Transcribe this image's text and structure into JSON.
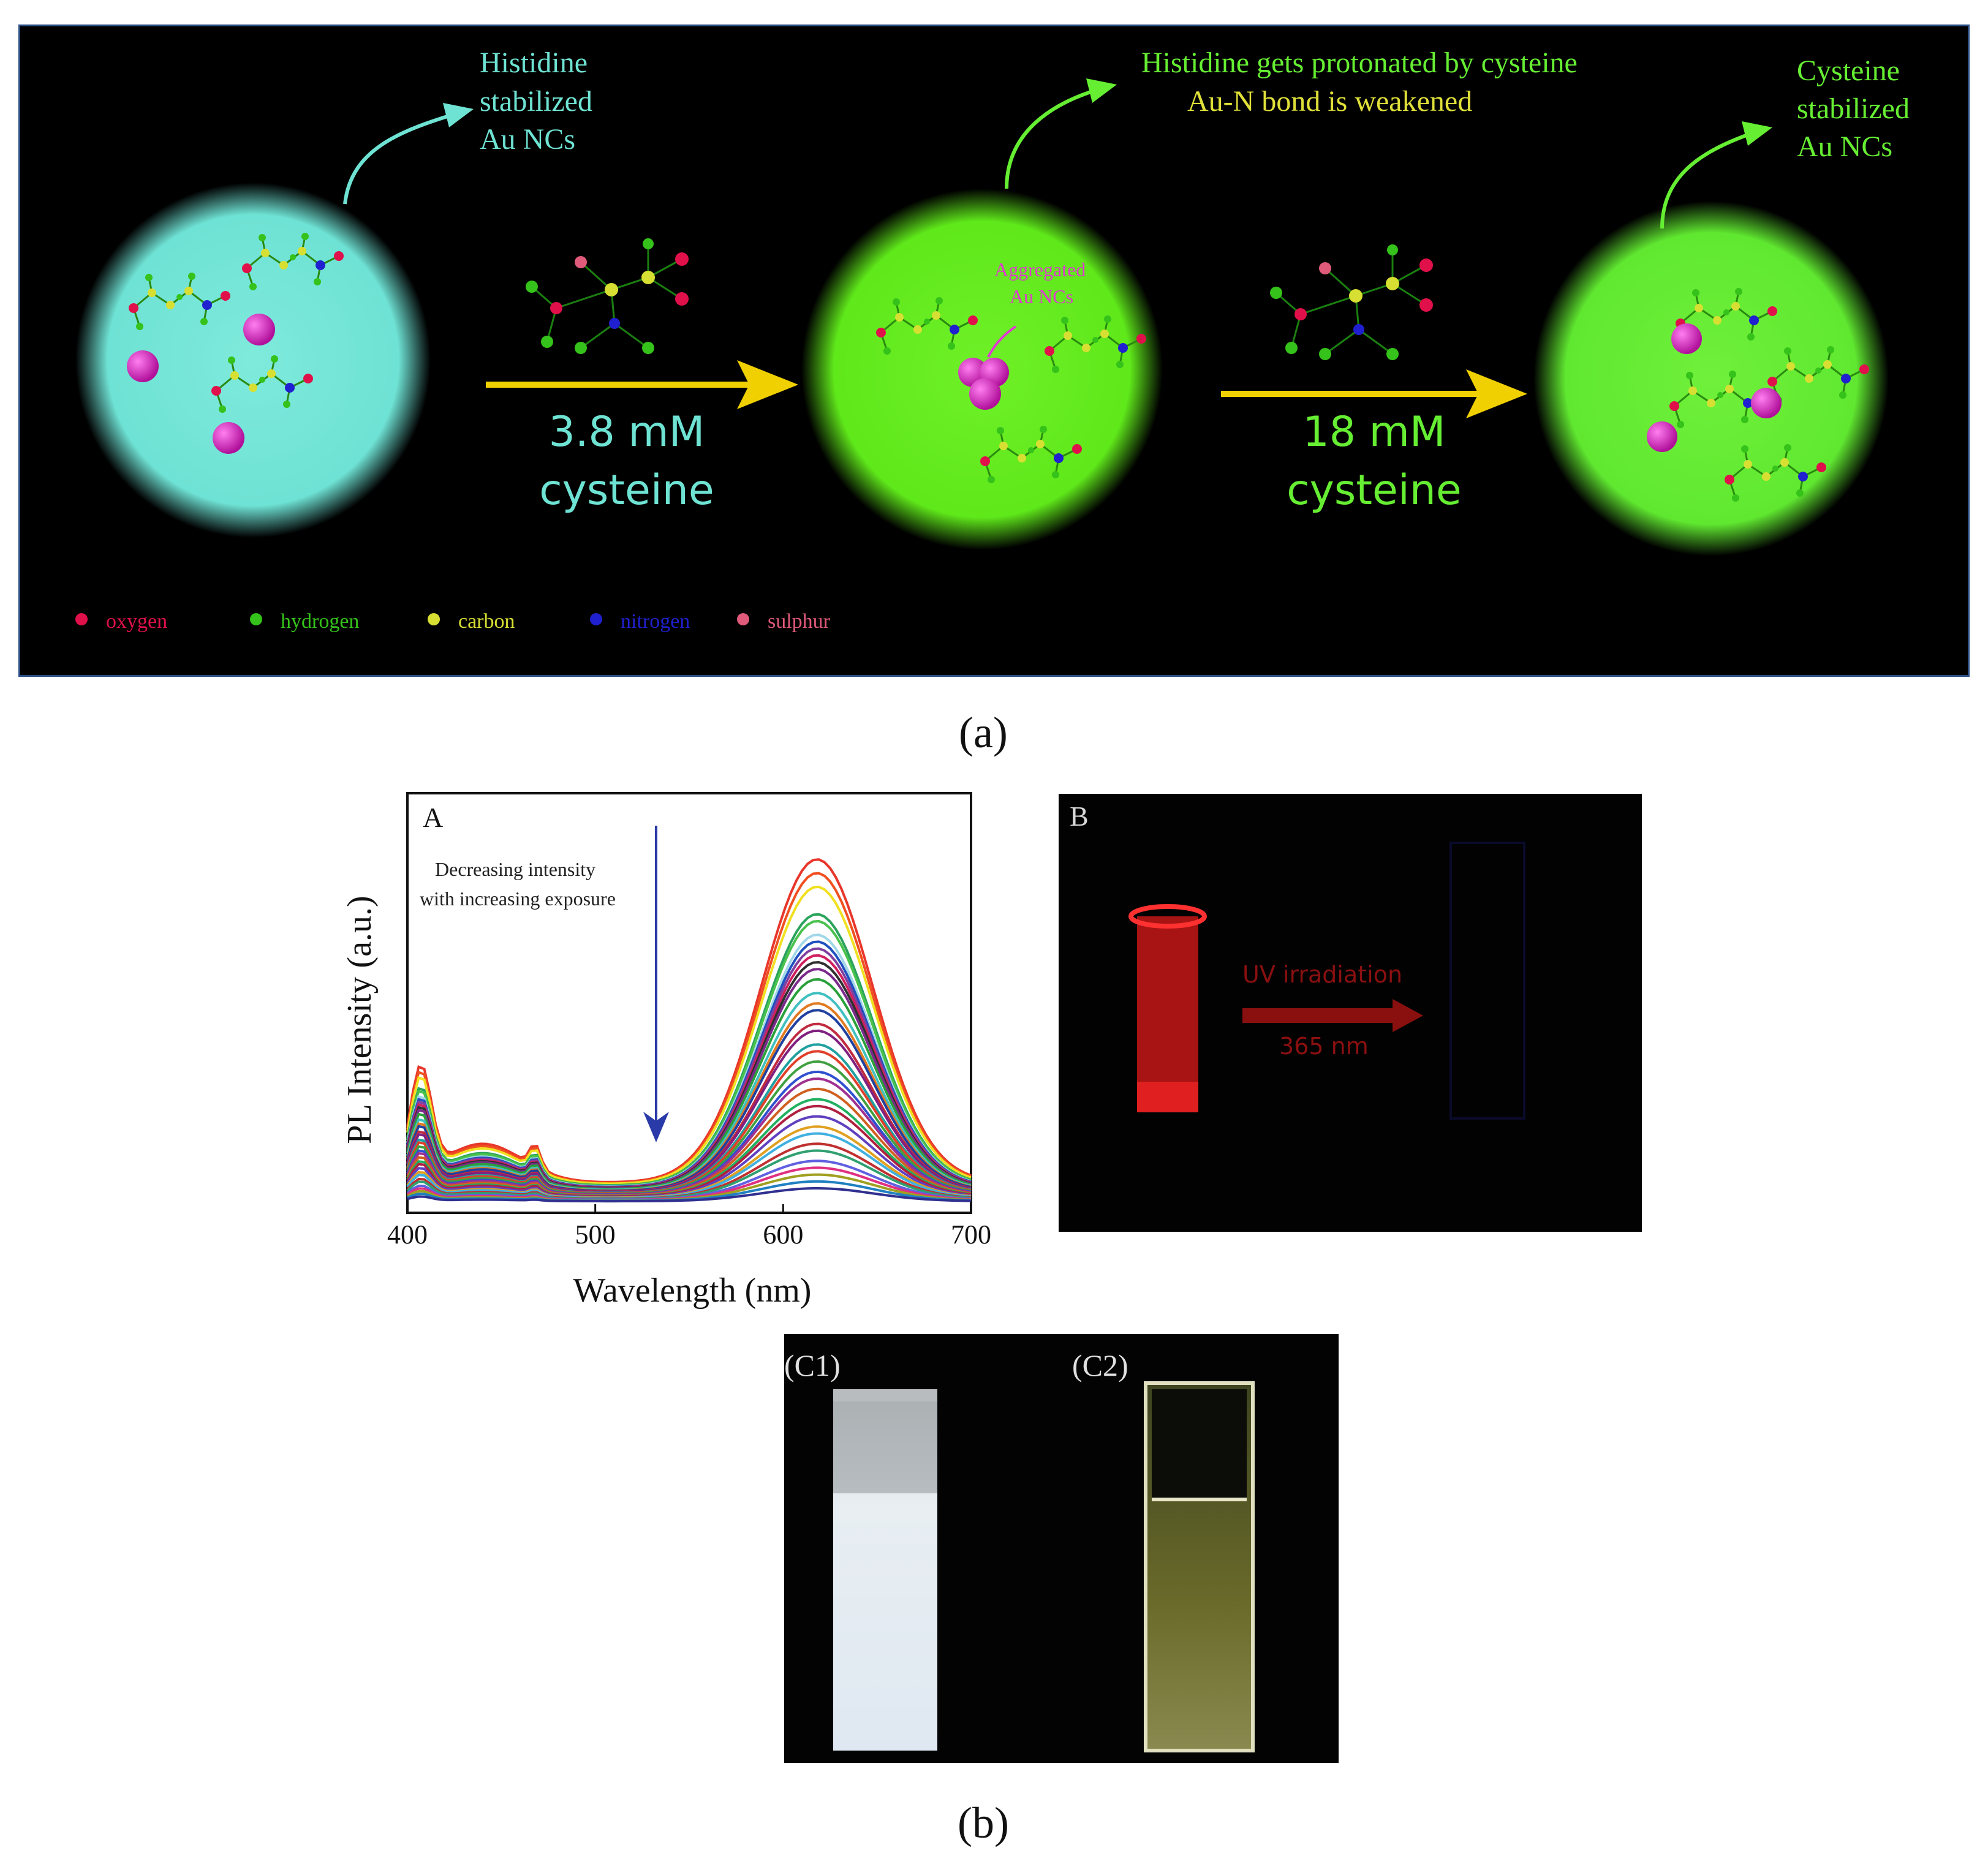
{
  "scheme": {
    "stage1_label": "Histidine\nstabilized\nAu NCs",
    "stage2_label_line1": "Histidine gets protonated by cysteine",
    "stage2_label_line2": "Au-N bond is weakened",
    "stage3_label": "Cysteine\nstabilized\nAu NCs",
    "aggregated_label": "Aggregated\nAu NCs",
    "arrow1_amount": "3.8 mM",
    "arrow1_reagent": "cysteine",
    "arrow2_amount": "18 mM",
    "arrow2_reagent": "cysteine",
    "legend": [
      {
        "label": "oxygen",
        "color": "#e0104a"
      },
      {
        "label": "hydrogen",
        "color": "#35c21a"
      },
      {
        "label": "carbon",
        "color": "#d7e032"
      },
      {
        "label": "nitrogen",
        "color": "#2020d0"
      },
      {
        "label": "sulphur",
        "color": "#e05a7a"
      }
    ],
    "colors": {
      "stage1_sphere": "#74e6d8",
      "stage2_sphere": "#66ee1c",
      "stage3_sphere": "#66ee33",
      "cyan_text": "#6fe3d3",
      "green_text": "#66ee33",
      "yellow_text": "#e0e03a",
      "arrow": "#f0d000",
      "gold_atom": "#d01dbd"
    }
  },
  "caption_a": "(a)",
  "caption_b": "(b)",
  "panel_A": {
    "label": "A",
    "annotation": "Decreasing intensity\nwith increasing exposure"
  },
  "panel_B": {
    "label": "B",
    "arrow_text_1": "UV irradiation",
    "arrow_text_2": "365 nm"
  },
  "panel_C": {
    "label_c1": "(C1)",
    "label_c2": "(C2)"
  },
  "chart_data": {
    "type": "line",
    "xlabel": "Wavelength (nm)",
    "ylabel": "PL Intensity (a.u.)",
    "xlim": [
      400,
      700
    ],
    "x_ticks": [
      400,
      500,
      600,
      700
    ],
    "peak_wavelength": 618,
    "series_peaks": [
      1.0,
      0.96,
      0.92,
      0.84,
      0.82,
      0.78,
      0.76,
      0.74,
      0.72,
      0.7,
      0.68,
      0.65,
      0.61,
      0.58,
      0.56,
      0.52,
      0.5,
      0.46,
      0.44,
      0.41,
      0.38,
      0.36,
      0.33,
      0.3,
      0.28,
      0.25,
      0.22,
      0.2,
      0.17,
      0.15,
      0.12,
      0.1,
      0.08,
      0.06,
      0.04
    ],
    "series_colors": [
      "#e8362b",
      "#f05020",
      "#f0e020",
      "#2aa35b",
      "#49c24d",
      "#a0d8e8",
      "#2050c0",
      "#8040a0",
      "#d02060",
      "#303030",
      "#7a2a8a",
      "#2aa03a",
      "#40c0c0",
      "#e07a20",
      "#2040a0",
      "#c02a40",
      "#802080",
      "#20a0a0",
      "#e0402a",
      "#40a040",
      "#3050d0",
      "#a03090",
      "#d06020",
      "#20b060",
      "#b02040",
      "#6040c0",
      "#e0a020",
      "#40b0e0",
      "#c03030",
      "#30a070",
      "#6060e0",
      "#e03080",
      "#a0a020",
      "#2080c0",
      "#303090"
    ],
    "legend": "none",
    "grid": false
  }
}
